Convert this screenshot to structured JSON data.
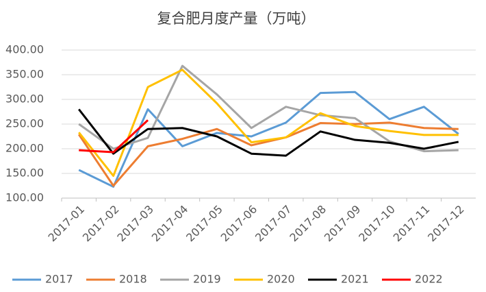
{
  "chart_data": {
    "type": "line",
    "title": "复合肥月度产量（万吨）",
    "categories": [
      "2017-01",
      "2017-02",
      "2017-03",
      "2017-04",
      "2017-05",
      "2017-06",
      "2017-07",
      "2017-08",
      "2017-09",
      "2017-10",
      "2017-11",
      "2017-12"
    ],
    "series": [
      {
        "name": "2017",
        "color": "#5b9bd5",
        "values": [
          157,
          123,
          280,
          205,
          232,
          225,
          253,
          313,
          315,
          260,
          285,
          230
        ]
      },
      {
        "name": "2018",
        "color": "#ed7d31",
        "values": [
          229,
          125,
          205,
          220,
          240,
          207,
          223,
          252,
          250,
          253,
          242,
          240
        ]
      },
      {
        "name": "2019",
        "color": "#a5a5a5",
        "values": [
          250,
          200,
          222,
          368,
          310,
          242,
          285,
          268,
          262,
          215,
          195,
          197
        ]
      },
      {
        "name": "2020",
        "color": "#ffc000",
        "values": [
          233,
          145,
          325,
          360,
          292,
          213,
          223,
          272,
          246,
          236,
          228,
          228
        ]
      },
      {
        "name": "2021",
        "color": "#000000",
        "values": [
          280,
          190,
          240,
          242,
          225,
          190,
          186,
          235,
          218,
          212,
          200,
          214
        ]
      },
      {
        "name": "2022",
        "color": "#ff0000",
        "values": [
          197,
          193,
          258,
          null,
          null,
          null,
          null,
          null,
          null,
          null,
          null,
          null
        ]
      }
    ],
    "ylim": [
      100,
      400
    ],
    "yticks": [
      {
        "value": 100,
        "label": "100.00"
      },
      {
        "value": 150,
        "label": "150.00"
      },
      {
        "value": 200,
        "label": "200.00"
      },
      {
        "value": 250,
        "label": "250.00"
      },
      {
        "value": 300,
        "label": "300.00"
      },
      {
        "value": 350,
        "label": "350.00"
      },
      {
        "value": 400,
        "label": "400.00"
      }
    ],
    "grid": true,
    "legend": "bottom"
  }
}
